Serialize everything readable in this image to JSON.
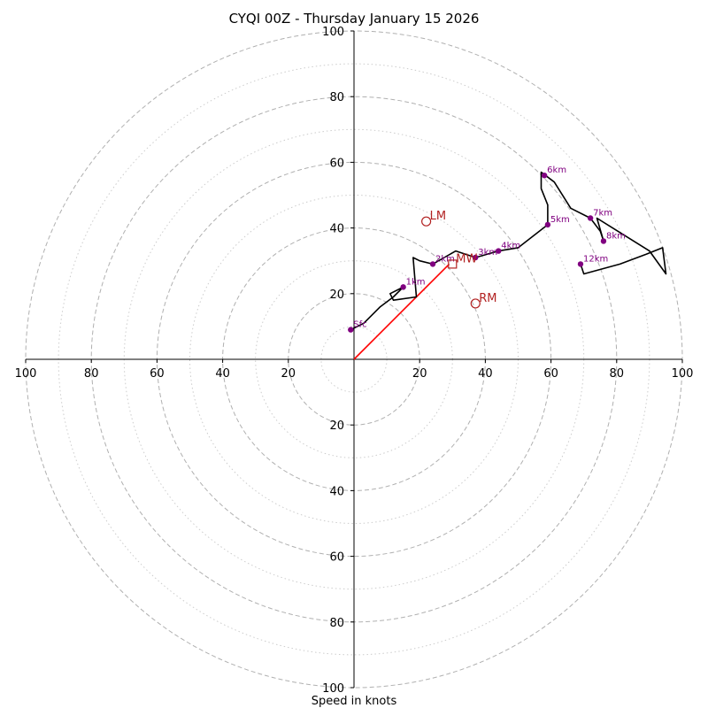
{
  "chart_data": {
    "type": "hodograph",
    "title": "CYQI 00Z - Thursday January 15 2026",
    "xlabel": "Speed in knots",
    "axis_max": 100,
    "ring_major": [
      20,
      40,
      60,
      80,
      100
    ],
    "ring_minor": [
      10,
      30,
      50,
      70,
      90
    ],
    "ticks": {
      "x_left": [
        "100",
        "80",
        "60",
        "40",
        "20"
      ],
      "x_right": [
        "20",
        "40",
        "60",
        "80",
        "100"
      ],
      "y_up": [
        "20",
        "40",
        "60",
        "80",
        "100"
      ],
      "y_down": [
        "20",
        "40",
        "60",
        "80",
        "100"
      ]
    },
    "trace": [
      [
        -1,
        9
      ],
      [
        3,
        11
      ],
      [
        8,
        16
      ],
      [
        12,
        19
      ],
      [
        15,
        22
      ],
      [
        11,
        20
      ],
      [
        12,
        18
      ],
      [
        19,
        19
      ],
      [
        18,
        31
      ],
      [
        20,
        30
      ],
      [
        24,
        29
      ],
      [
        31,
        33
      ],
      [
        37,
        31
      ],
      [
        44,
        33
      ],
      [
        50,
        34
      ],
      [
        59,
        41
      ],
      [
        59,
        47
      ],
      [
        57,
        52
      ],
      [
        57,
        57
      ],
      [
        61,
        54
      ],
      [
        66,
        46
      ],
      [
        72,
        43
      ],
      [
        75,
        39
      ],
      [
        76,
        36
      ],
      [
        74,
        43
      ],
      [
        90,
        33
      ],
      [
        95,
        26
      ],
      [
        94,
        34
      ],
      [
        89,
        32
      ],
      [
        81,
        29
      ],
      [
        70,
        26
      ],
      [
        69,
        29
      ]
    ],
    "height_markers": [
      {
        "label": "Sfc",
        "u": -1,
        "v": 9
      },
      {
        "label": "1km",
        "u": 15,
        "v": 22
      },
      {
        "label": "2km",
        "u": 24,
        "v": 29
      },
      {
        "label": "3km",
        "u": 37,
        "v": 31
      },
      {
        "label": "4km",
        "u": 44,
        "v": 33
      },
      {
        "label": "5km",
        "u": 59,
        "v": 41
      },
      {
        "label": "6km",
        "u": 58,
        "v": 56
      },
      {
        "label": "7km",
        "u": 72,
        "v": 43
      },
      {
        "label": "8km",
        "u": 76,
        "v": 36
      },
      {
        "label": "12km",
        "u": 69,
        "v": 29
      }
    ],
    "storm_motions": [
      {
        "label": "LM",
        "u": 22,
        "v": 42,
        "marker": "circle"
      },
      {
        "label": "RM",
        "u": 37,
        "v": 17,
        "marker": "circle"
      },
      {
        "label": "MW",
        "u": 30,
        "v": 29,
        "marker": "square"
      }
    ],
    "shear_vector": {
      "from": [
        0,
        0
      ],
      "to": [
        29,
        29
      ]
    },
    "colors": {
      "trace": "#000000",
      "marker": "#800080",
      "storm": "#b22222",
      "shear": "#ff0000",
      "grid": "#b0b0b0",
      "grid_minor": "#cccccc"
    }
  }
}
